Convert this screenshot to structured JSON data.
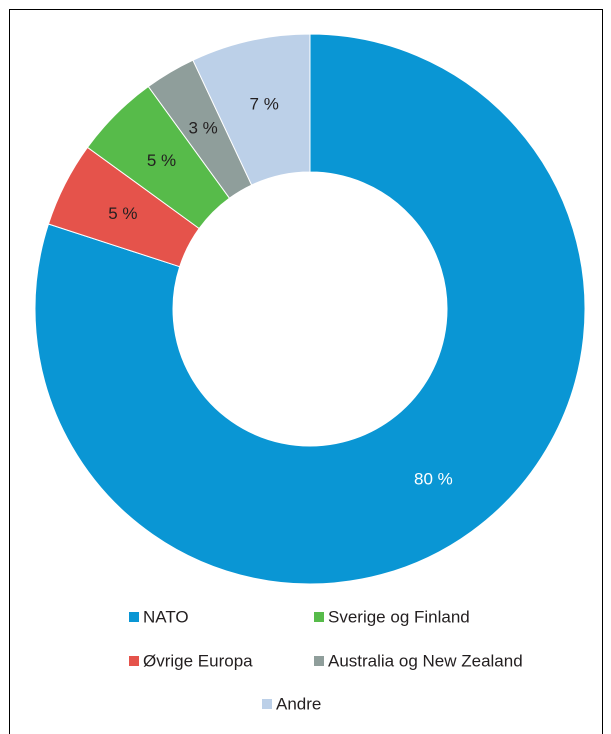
{
  "chart_data": {
    "type": "pie",
    "variant": "donut",
    "title": "",
    "categories": [
      "NATO",
      "Øvrige Europa",
      "Sverige og Finland",
      "Australia og New Zealand",
      "Andre"
    ],
    "values": [
      80,
      5,
      5,
      3,
      7
    ],
    "labels": [
      "80 %",
      "5 %",
      "5 %",
      "3 %",
      "7 %"
    ],
    "colors": [
      "#0a96d4",
      "#e5534b",
      "#57bb4a",
      "#8f9e9b",
      "#bcd0e8"
    ],
    "label_colors": [
      "#ffffff",
      "#231f20",
      "#231f20",
      "#231f20",
      "#231f20"
    ],
    "legend": {
      "placement": "bottom",
      "items": [
        {
          "label": "NATO",
          "color": "#0a96d4"
        },
        {
          "label": "Sverige og Finland",
          "color": "#57bb4a"
        },
        {
          "label": "Øvrige Europa",
          "color": "#e5534b"
        },
        {
          "label": "Australia og New Zealand",
          "color": "#8f9e9b"
        },
        {
          "label": "Andre",
          "color": "#bcd0e8"
        }
      ]
    }
  }
}
